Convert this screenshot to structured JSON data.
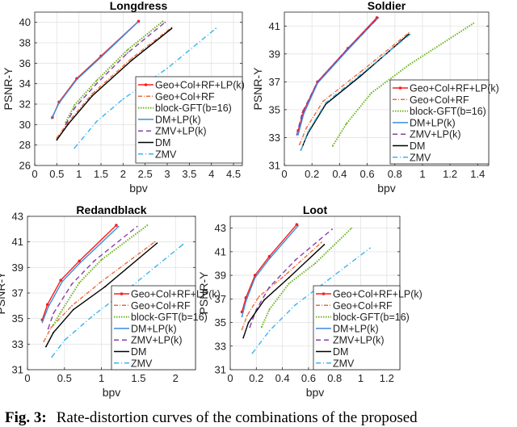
{
  "legend": [
    "Geo+Col+RF+LP(k)",
    "Geo+Col+RF",
    "block-GFT(b=16)",
    "DM+LP(k)",
    "ZMV+LP(k)",
    "DM",
    "ZMV"
  ],
  "series_styles": [
    {
      "color": "#ff1a1a",
      "dash": "",
      "marker": true
    },
    {
      "color": "#ef6a3a",
      "dash": "5,2,1,2",
      "marker": false
    },
    {
      "color": "#6db51c",
      "dash": "1.5,1.5",
      "marker": false,
      "width": 2
    },
    {
      "color": "#3a8ddc",
      "dash": "",
      "marker": false
    },
    {
      "color": "#8b3ea8",
      "dash": "6,4",
      "marker": false
    },
    {
      "color": "#000000",
      "dash": "",
      "marker": false
    },
    {
      "color": "#38b6ee",
      "dash": "6,3,1,3",
      "marker": false
    }
  ],
  "chart_data": [
    {
      "type": "line",
      "title": "Longdress",
      "xlabel": "bpv",
      "ylabel": "PSNR-Y",
      "xlim": [
        0,
        4.7
      ],
      "ylim": [
        26,
        41
      ],
      "grid": true,
      "legend_position": "bottom-right",
      "xticks": [
        "0",
        "0.5",
        "1",
        "1.5",
        "2",
        "2.5",
        "3",
        "3.5",
        "4",
        "4.5"
      ],
      "xtick_values": [
        0,
        0.5,
        1,
        1.5,
        2,
        2.5,
        3,
        3.5,
        4,
        4.5
      ],
      "yticks": [
        "26",
        "28",
        "30",
        "32",
        "34",
        "36",
        "38",
        "40"
      ],
      "ytick_values": [
        26,
        28,
        30,
        32,
        34,
        36,
        38,
        40
      ],
      "series": [
        {
          "name": "Geo+Col+RF+LP(k)",
          "x": [
            0.4,
            0.55,
            0.95,
            1.5,
            2.35
          ],
          "y": [
            30.7,
            32.2,
            34.5,
            36.7,
            40.1
          ]
        },
        {
          "name": "Geo+Col+RF",
          "x": [
            0.5,
            0.75,
            1.3,
            2.2,
            3.1
          ],
          "y": [
            28.7,
            30.2,
            33.0,
            36.5,
            39.5
          ]
        },
        {
          "name": "block-GFT(b=16)",
          "x": [
            0.7,
            0.9,
            1.4,
            2.1,
            2.9
          ],
          "y": [
            30.2,
            31.9,
            34.3,
            37.3,
            40.1
          ]
        },
        {
          "name": "DM+LP(k)",
          "x": [
            0.38,
            0.55,
            0.95,
            1.5,
            2.33
          ],
          "y": [
            30.6,
            32.1,
            34.4,
            36.6,
            40.0
          ]
        },
        {
          "name": "ZMV+LP(k)",
          "x": [
            0.7,
            0.9,
            1.4,
            2.1,
            2.95
          ],
          "y": [
            30.0,
            31.6,
            34.0,
            37.0,
            40.0
          ]
        },
        {
          "name": "DM",
          "x": [
            0.5,
            0.75,
            1.3,
            2.2,
            3.1
          ],
          "y": [
            28.5,
            30.0,
            32.8,
            36.3,
            39.4
          ]
        },
        {
          "name": "ZMV",
          "x": [
            0.9,
            1.4,
            2.0,
            3.0,
            4.1
          ],
          "y": [
            27.7,
            30.3,
            32.5,
            35.5,
            39.4
          ]
        }
      ]
    },
    {
      "type": "line",
      "title": "Soldier",
      "xlabel": "bpv",
      "ylabel": "PSNR-Y",
      "xlim": [
        0,
        1.48
      ],
      "ylim": [
        31,
        42
      ],
      "grid": true,
      "legend_position": "bottom-right",
      "xticks": [
        "0",
        "0.2",
        "0.4",
        "0.6",
        "0.8",
        "1",
        "1.2",
        "1.4"
      ],
      "xtick_values": [
        0,
        0.2,
        0.4,
        0.6,
        0.8,
        1,
        1.2,
        1.4
      ],
      "yticks": [
        "31",
        "33",
        "35",
        "37",
        "39",
        "41"
      ],
      "ytick_values": [
        31,
        33,
        35,
        37,
        39,
        41
      ],
      "series": [
        {
          "name": "Geo+Col+RF+LP(k)",
          "x": [
            0.1,
            0.14,
            0.24,
            0.46,
            0.67
          ],
          "y": [
            33.5,
            34.9,
            37.0,
            39.4,
            41.6
          ]
        },
        {
          "name": "Geo+Col+RF",
          "x": [
            0.11,
            0.16,
            0.28,
            0.55,
            0.9
          ],
          "y": [
            32.5,
            33.7,
            35.6,
            37.7,
            40.5
          ]
        },
        {
          "name": "block-GFT(b=16)",
          "x": [
            0.35,
            0.45,
            0.63,
            0.9,
            1.37
          ],
          "y": [
            32.4,
            34.0,
            36.2,
            38.2,
            41.2
          ]
        },
        {
          "name": "DM+LP(k)",
          "x": [
            0.1,
            0.14,
            0.24,
            0.46,
            0.67
          ],
          "y": [
            33.2,
            34.7,
            36.9,
            39.3,
            41.5
          ]
        },
        {
          "name": "ZMV+LP(k)",
          "x": [
            0.09,
            0.13,
            0.24,
            0.46,
            0.68
          ],
          "y": [
            33.2,
            34.8,
            37.0,
            39.4,
            41.6
          ]
        },
        {
          "name": "DM",
          "x": [
            0.12,
            0.17,
            0.3,
            0.55,
            0.9
          ],
          "y": [
            32.1,
            33.3,
            35.4,
            37.4,
            40.4
          ]
        },
        {
          "name": "ZMV",
          "x": [
            0.12,
            0.17,
            0.3,
            0.55,
            0.91
          ],
          "y": [
            32.1,
            33.4,
            35.5,
            37.5,
            40.4
          ]
        }
      ]
    },
    {
      "type": "line",
      "title": "Redandblack",
      "xlabel": "bpv",
      "ylabel": "PSNR-Y",
      "xlim": [
        0,
        2.27
      ],
      "ylim": [
        31,
        43
      ],
      "grid": true,
      "legend_position": "bottom-right",
      "xticks": [
        "0",
        "0.5",
        "1",
        "1.5",
        "2"
      ],
      "xtick_values": [
        0,
        0.5,
        1,
        1.5,
        2
      ],
      "yticks": [
        "31",
        "33",
        "35",
        "37",
        "39",
        "41",
        "43"
      ],
      "ytick_values": [
        31,
        33,
        35,
        37,
        39,
        41,
        43
      ],
      "series": [
        {
          "name": "Geo+Col+RF+LP(k)",
          "x": [
            0.2,
            0.27,
            0.45,
            0.7,
            1.2
          ],
          "y": [
            34.9,
            36.1,
            38.0,
            39.5,
            42.3
          ]
        },
        {
          "name": "Geo+Col+RF",
          "x": [
            0.22,
            0.32,
            0.6,
            1.0,
            1.72
          ],
          "y": [
            33.2,
            34.3,
            36.0,
            37.9,
            41.0
          ]
        },
        {
          "name": "block-GFT(b=16)",
          "x": [
            0.35,
            0.45,
            0.7,
            1.0,
            1.62
          ],
          "y": [
            34.5,
            35.5,
            37.8,
            39.6,
            42.3
          ]
        },
        {
          "name": "DM+LP(k)",
          "x": [
            0.2,
            0.28,
            0.47,
            0.7,
            1.23
          ],
          "y": [
            34.7,
            35.9,
            37.9,
            39.3,
            42.2
          ]
        },
        {
          "name": "ZMV+LP(k)",
          "x": [
            0.28,
            0.35,
            0.6,
            0.9,
            1.48
          ],
          "y": [
            34.2,
            35.4,
            37.7,
            39.5,
            42.2
          ]
        },
        {
          "name": "DM",
          "x": [
            0.25,
            0.35,
            0.62,
            1.05,
            1.75
          ],
          "y": [
            32.8,
            33.9,
            35.7,
            37.5,
            40.9
          ]
        },
        {
          "name": "ZMV",
          "x": [
            0.33,
            0.5,
            0.9,
            1.4,
            2.1
          ],
          "y": [
            32.0,
            33.3,
            35.3,
            37.5,
            40.8
          ]
        }
      ]
    },
    {
      "type": "line",
      "title": "Loot",
      "xlabel": "bpv",
      "ylabel": "PSNR-Y",
      "xlim": [
        0,
        1.3
      ],
      "ylim": [
        31,
        44
      ],
      "grid": true,
      "legend_position": "bottom-right",
      "xticks": [
        "0",
        "0.2",
        "0.4",
        "0.6",
        "0.8",
        "1",
        "1.2"
      ],
      "xtick_values": [
        0,
        0.2,
        0.4,
        0.6,
        0.8,
        1,
        1.2
      ],
      "yticks": [
        "31",
        "33",
        "35",
        "37",
        "39",
        "41",
        "43"
      ],
      "ytick_values": [
        31,
        33,
        35,
        37,
        39,
        41,
        43
      ],
      "series": [
        {
          "name": "Geo+Col+RF+LP(k)",
          "x": [
            0.09,
            0.12,
            0.19,
            0.3,
            0.51
          ],
          "y": [
            35.9,
            37.1,
            39.0,
            40.6,
            43.3
          ]
        },
        {
          "name": "Geo+Col+RF",
          "x": [
            0.09,
            0.13,
            0.22,
            0.42,
            0.7
          ],
          "y": [
            34.4,
            35.6,
            37.2,
            39.0,
            41.8
          ]
        },
        {
          "name": "block-GFT(b=16)",
          "x": [
            0.24,
            0.3,
            0.45,
            0.65,
            0.93
          ],
          "y": [
            34.6,
            36.1,
            38.3,
            40.0,
            43.0
          ]
        },
        {
          "name": "DM+LP(k)",
          "x": [
            0.09,
            0.12,
            0.19,
            0.3,
            0.52
          ],
          "y": [
            35.5,
            36.8,
            38.8,
            40.4,
            43.2
          ]
        },
        {
          "name": "ZMV+LP(k)",
          "x": [
            0.15,
            0.2,
            0.3,
            0.5,
            0.78
          ],
          "y": [
            34.6,
            36.1,
            38.0,
            40.3,
            42.9
          ]
        },
        {
          "name": "DM",
          "x": [
            0.1,
            0.14,
            0.26,
            0.45,
            0.72
          ],
          "y": [
            33.7,
            35.0,
            36.9,
            38.8,
            41.6
          ]
        },
        {
          "name": "ZMV",
          "x": [
            0.17,
            0.3,
            0.5,
            0.75,
            1.07
          ],
          "y": [
            32.4,
            34.3,
            36.5,
            38.6,
            41.3
          ]
        }
      ]
    }
  ],
  "caption": {
    "label": "Fig. 3:",
    "text": "Rate-distortion curves of the combinations of the proposed"
  }
}
